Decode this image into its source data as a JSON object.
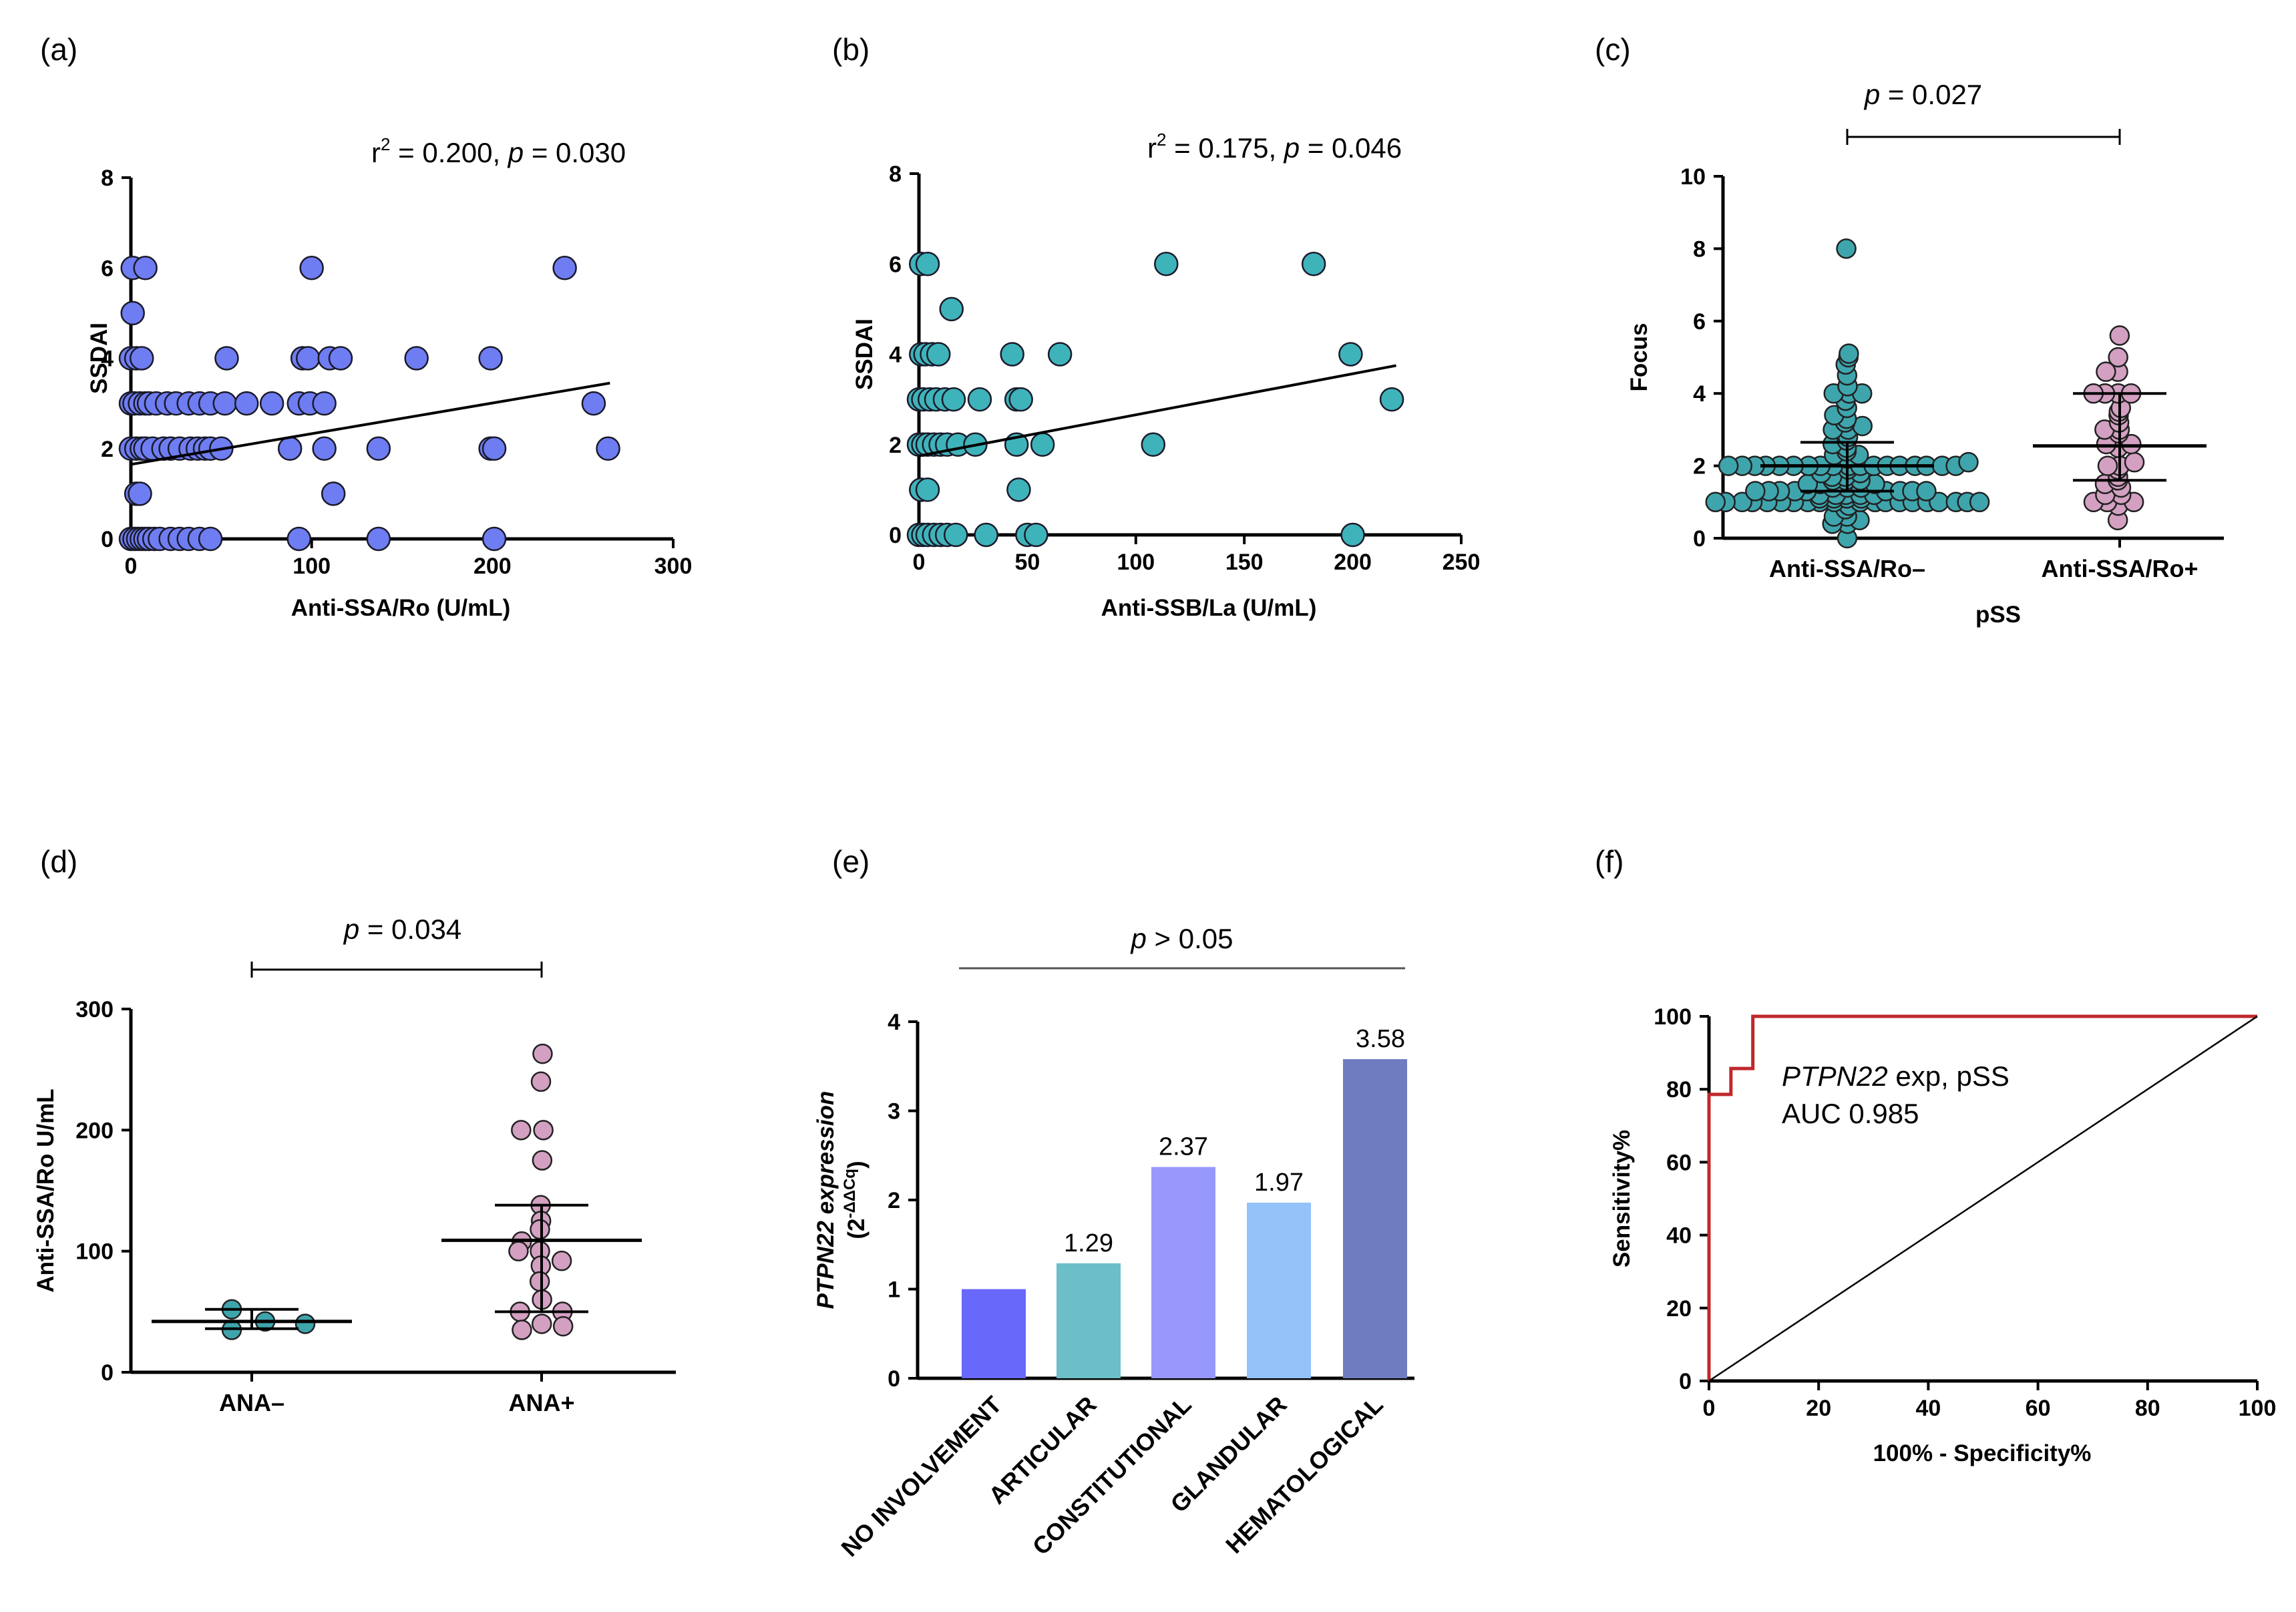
{
  "chart_data": [
    {
      "panel": "(a)",
      "type": "scatter",
      "xlabel": "Anti-SSA/Ro (U/mL)",
      "ylabel": "SSDAI",
      "xlim": [
        0,
        300
      ],
      "ylim": [
        0,
        8
      ],
      "xticks": [
        "0",
        "100",
        "200",
        "300"
      ],
      "yticks": [
        "0",
        "2",
        "4",
        "6",
        "8"
      ],
      "stats": {
        "r2": "0.200",
        "p": "0.030"
      },
      "color": "#6f7df2",
      "regression": {
        "x0": 0,
        "y0": 1.65,
        "x1": 265,
        "y1": 3.45
      },
      "points": [
        [
          0,
          0
        ],
        [
          2,
          0
        ],
        [
          4,
          0
        ],
        [
          6,
          0
        ],
        [
          8,
          0
        ],
        [
          10,
          0
        ],
        [
          13,
          0
        ],
        [
          16,
          0
        ],
        [
          22,
          0
        ],
        [
          27,
          0
        ],
        [
          32,
          0
        ],
        [
          38,
          0
        ],
        [
          44,
          0
        ],
        [
          93,
          0
        ],
        [
          137,
          0
        ],
        [
          201,
          0
        ],
        [
          3,
          1
        ],
        [
          5,
          1
        ],
        [
          112,
          1
        ],
        [
          0,
          2
        ],
        [
          3,
          2
        ],
        [
          6,
          2
        ],
        [
          8,
          2
        ],
        [
          12,
          2
        ],
        [
          18,
          2
        ],
        [
          22,
          2
        ],
        [
          27,
          2
        ],
        [
          33,
          2
        ],
        [
          37,
          2
        ],
        [
          41,
          2
        ],
        [
          44,
          2
        ],
        [
          50,
          2
        ],
        [
          88,
          2
        ],
        [
          107,
          2
        ],
        [
          137,
          2
        ],
        [
          199,
          2
        ],
        [
          201,
          2
        ],
        [
          264,
          2
        ],
        [
          0,
          3
        ],
        [
          2,
          3
        ],
        [
          5,
          3
        ],
        [
          8,
          3
        ],
        [
          10,
          3
        ],
        [
          14,
          3
        ],
        [
          20,
          3
        ],
        [
          25,
          3
        ],
        [
          32,
          3
        ],
        [
          38,
          3
        ],
        [
          44,
          3
        ],
        [
          52,
          3
        ],
        [
          64,
          3
        ],
        [
          78,
          3
        ],
        [
          93,
          3
        ],
        [
          99,
          3
        ],
        [
          107,
          3
        ],
        [
          256,
          3
        ],
        [
          0,
          4
        ],
        [
          3,
          4
        ],
        [
          6,
          4
        ],
        [
          53,
          4
        ],
        [
          95,
          4
        ],
        [
          98,
          4
        ],
        [
          110,
          4
        ],
        [
          116,
          4
        ],
        [
          158,
          4
        ],
        [
          199,
          4
        ],
        [
          1,
          5
        ],
        [
          1,
          6
        ],
        [
          8,
          6
        ],
        [
          100,
          6
        ],
        [
          240,
          6
        ]
      ]
    },
    {
      "panel": "(b)",
      "type": "scatter",
      "xlabel": "Anti-SSB/La (U/mL)",
      "ylabel": "SSDAI",
      "xlim": [
        0,
        250
      ],
      "ylim": [
        0,
        8
      ],
      "xticks": [
        "0",
        "50",
        "100",
        "150",
        "200",
        "250"
      ],
      "yticks": [
        "0",
        "2",
        "4",
        "6",
        "8"
      ],
      "stats": {
        "r2": "0.175",
        "p": "0.046"
      },
      "color": "#3fb3ba",
      "regression": {
        "x0": 0,
        "y0": 1.75,
        "x1": 220,
        "y1": 3.75
      },
      "points": [
        [
          0,
          0
        ],
        [
          2,
          0
        ],
        [
          4,
          0
        ],
        [
          7,
          0
        ],
        [
          10,
          0
        ],
        [
          13,
          0
        ],
        [
          17,
          0
        ],
        [
          31,
          0
        ],
        [
          50,
          0
        ],
        [
          54,
          0
        ],
        [
          200,
          0
        ],
        [
          1,
          1
        ],
        [
          4,
          1
        ],
        [
          46,
          1
        ],
        [
          0,
          2
        ],
        [
          2,
          2
        ],
        [
          4,
          2
        ],
        [
          7,
          2
        ],
        [
          10,
          2
        ],
        [
          13,
          2
        ],
        [
          18,
          2
        ],
        [
          26,
          2
        ],
        [
          45,
          2
        ],
        [
          57,
          2
        ],
        [
          108,
          2
        ],
        [
          0,
          3
        ],
        [
          2,
          3
        ],
        [
          5,
          3
        ],
        [
          8,
          3
        ],
        [
          12,
          3
        ],
        [
          16,
          3
        ],
        [
          28,
          3
        ],
        [
          45,
          3
        ],
        [
          47,
          3
        ],
        [
          218,
          3
        ],
        [
          1,
          4
        ],
        [
          3,
          4
        ],
        [
          6,
          4
        ],
        [
          9,
          4
        ],
        [
          43,
          4
        ],
        [
          65,
          4
        ],
        [
          199,
          4
        ],
        [
          15,
          5
        ],
        [
          1,
          6
        ],
        [
          4,
          6
        ],
        [
          114,
          6
        ],
        [
          182,
          6
        ]
      ]
    },
    {
      "panel": "(c)",
      "type": "scatter",
      "xlabel": "pSS",
      "ylabel": "Focus",
      "ylim": [
        0,
        10
      ],
      "yticks": [
        "0",
        "2",
        "4",
        "6",
        "8",
        "10"
      ],
      "categories": [
        "Anti-SSA/Ro–",
        "Anti-SSA/Ro+"
      ],
      "p_label": "p = 0.027",
      "groups": [
        {
          "name": "Anti-SSA/Ro–",
          "color": "#3fa5ad",
          "median": 2.0,
          "q1": 1.3,
          "q3": 2.65,
          "values": [
            0,
            0.4,
            0.4,
            0.5,
            0.6,
            0.6,
            0.8,
            0.9,
            1,
            1,
            1,
            1,
            1,
            1,
            1,
            1,
            1,
            1,
            1,
            1,
            1,
            1,
            1,
            1,
            1,
            1,
            1,
            1,
            1.1,
            1.1,
            1.1,
            1.1,
            1.2,
            1.2,
            1.2,
            1.2,
            1.2,
            1.3,
            1.3,
            1.3,
            1.3,
            1.3,
            1.3,
            1.3,
            1.3,
            1.3,
            1.4,
            1.4,
            1.4,
            1.5,
            1.5,
            1.5,
            1.6,
            1.6,
            1.6,
            1.7,
            1.7,
            1.8,
            1.8,
            1.9,
            2,
            2,
            2,
            2,
            2,
            2,
            2,
            2,
            2,
            2,
            2,
            2,
            2,
            2,
            2,
            2,
            2,
            2,
            2.1,
            2.2,
            2.3,
            2.3,
            2.4,
            2.5,
            2.6,
            2.7,
            2.8,
            3,
            3,
            3.1,
            3.2,
            3.3,
            3.4,
            3.6,
            3.8,
            4,
            4,
            4,
            4.2,
            4.5,
            4.8,
            5,
            5.1,
            8
          ]
        },
        {
          "name": "Anti-SSA/Ro+",
          "color": "#d3a0c1",
          "median": 2.55,
          "q1": 1.6,
          "q3": 4.0,
          "values": [
            0.5,
            0.9,
            1,
            1,
            1,
            1.2,
            1.2,
            1.4,
            1.5,
            1.6,
            1.7,
            1.9,
            2,
            2,
            2.1,
            2.5,
            2.6,
            2.6,
            2.9,
            3,
            3,
            3.2,
            3.4,
            3.5,
            3.6,
            4,
            4,
            4,
            4,
            4.6,
            4.6,
            5,
            5.6
          ]
        }
      ]
    },
    {
      "panel": "(d)",
      "type": "scatter",
      "xlabel": "",
      "ylabel": "Anti-SSA/Ro U/mL",
      "ylim": [
        0,
        300
      ],
      "yticks": [
        "0",
        "100",
        "200",
        "300"
      ],
      "categories": [
        "ANA–",
        "ANA+"
      ],
      "p_label": "p = 0.034",
      "groups": [
        {
          "name": "ANA–",
          "color": "#3fa5ad",
          "median": 42,
          "q1": 36,
          "q3": 52,
          "values": [
            52,
            42,
            35,
            40
          ]
        },
        {
          "name": "ANA+",
          "color": "#d3a0c1",
          "median": 109,
          "q1": 50,
          "q3": 138,
          "values": [
            263,
            240,
            200,
            200,
            175,
            138,
            125,
            118,
            108,
            100,
            100,
            92,
            88,
            75,
            60,
            50,
            50,
            40,
            35,
            38
          ]
        }
      ]
    },
    {
      "panel": "(e)",
      "type": "bar",
      "ylabel_italic": "PTPN22 expression",
      "ylabel_unit": "(2",
      "ylabel_sup": "-ΔΔCq",
      "ylabel_close": ")",
      "ylim": [
        0,
        4
      ],
      "yticks": [
        "0",
        "1",
        "2",
        "3",
        "4"
      ],
      "p_label": "p > 0.05",
      "categories": [
        "NO INVOLVEMENT",
        "ARTICULAR",
        "CONSTITUTIONAL",
        "GLANDULAR",
        "HEMATOLOGICAL"
      ],
      "values": [
        1.0,
        1.29,
        2.37,
        1.97,
        3.58
      ],
      "value_labels": [
        "",
        "1.29",
        "2.37",
        "1.97",
        "3.58"
      ],
      "colors": [
        "#6868fb",
        "#6cbec8",
        "#9898fc",
        "#93c2f9",
        "#707cc0"
      ]
    },
    {
      "panel": "(f)",
      "type": "line",
      "xlabel": "100% - Specificity%",
      "ylabel": "Sensitivity%",
      "xlim": [
        0,
        100
      ],
      "ylim": [
        0,
        100
      ],
      "xticks": [
        "0",
        "20",
        "40",
        "60",
        "80",
        "100"
      ],
      "yticks": [
        "0",
        "20",
        "40",
        "60",
        "80",
        "100"
      ],
      "legend_gene": "PTPN22",
      "legend_rest": " exp, pSS",
      "auc_label": "AUC 0.985",
      "series": [
        {
          "name": "ROC",
          "color": "#c0282a",
          "x": [
            0,
            0,
            4,
            4,
            8,
            8,
            100
          ],
          "y": [
            0,
            78.6,
            78.6,
            85.7,
            85.7,
            100,
            100
          ]
        },
        {
          "name": "reference",
          "color": "#000000",
          "x": [
            0,
            100
          ],
          "y": [
            0,
            100
          ]
        }
      ]
    }
  ]
}
